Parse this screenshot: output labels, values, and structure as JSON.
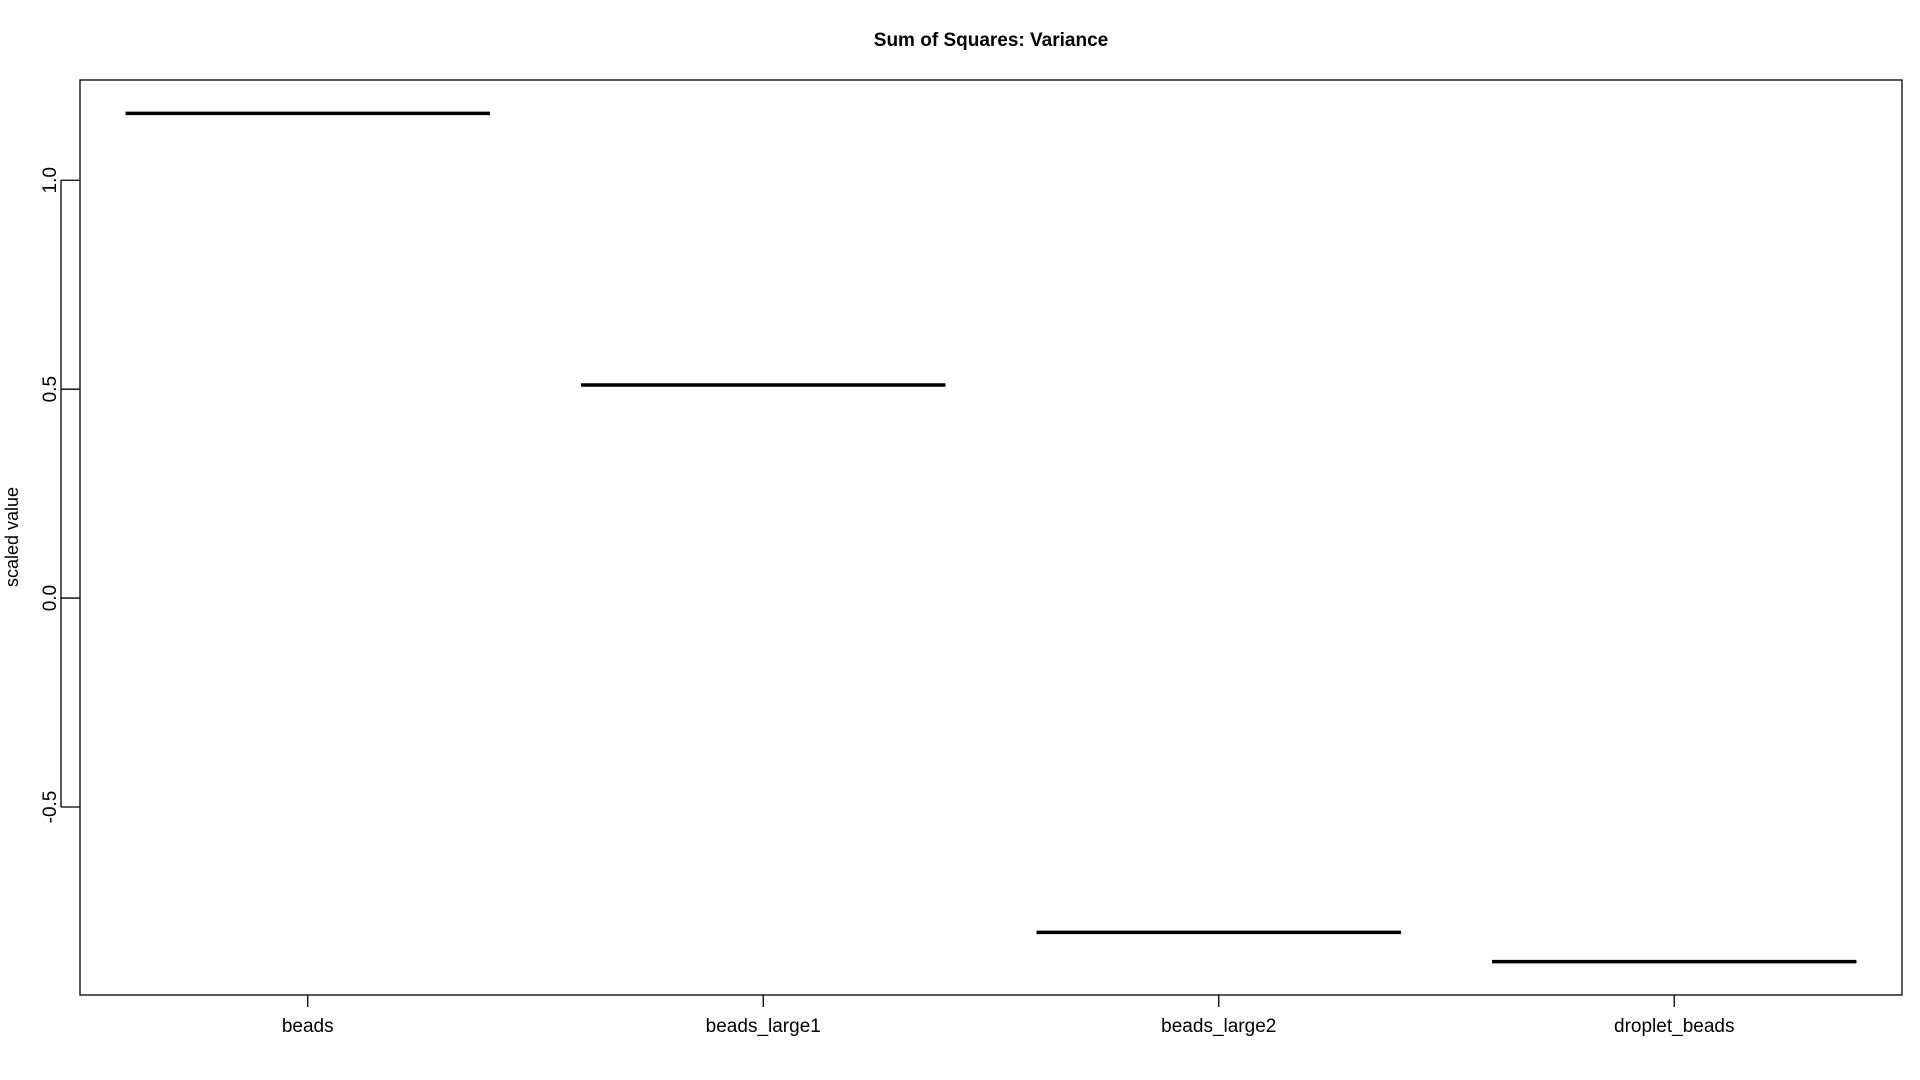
{
  "chart_data": {
    "type": "boxplot",
    "title": "Sum of Squares: Variance",
    "xlabel": "",
    "ylabel": "scaled value",
    "categories": [
      "beads",
      "beads_large1",
      "beads_large2",
      "droplet_beads"
    ],
    "values": [
      1.16,
      0.51,
      -0.8,
      -0.87
    ],
    "ylim": [
      -0.95,
      1.24
    ],
    "yticks": [
      -0.5,
      0.0,
      0.5,
      1.0
    ],
    "ytick_labels": [
      "-0.5",
      "0.0",
      "0.5",
      "1.0"
    ],
    "grid": false,
    "legend": "none",
    "color": "#000000"
  }
}
